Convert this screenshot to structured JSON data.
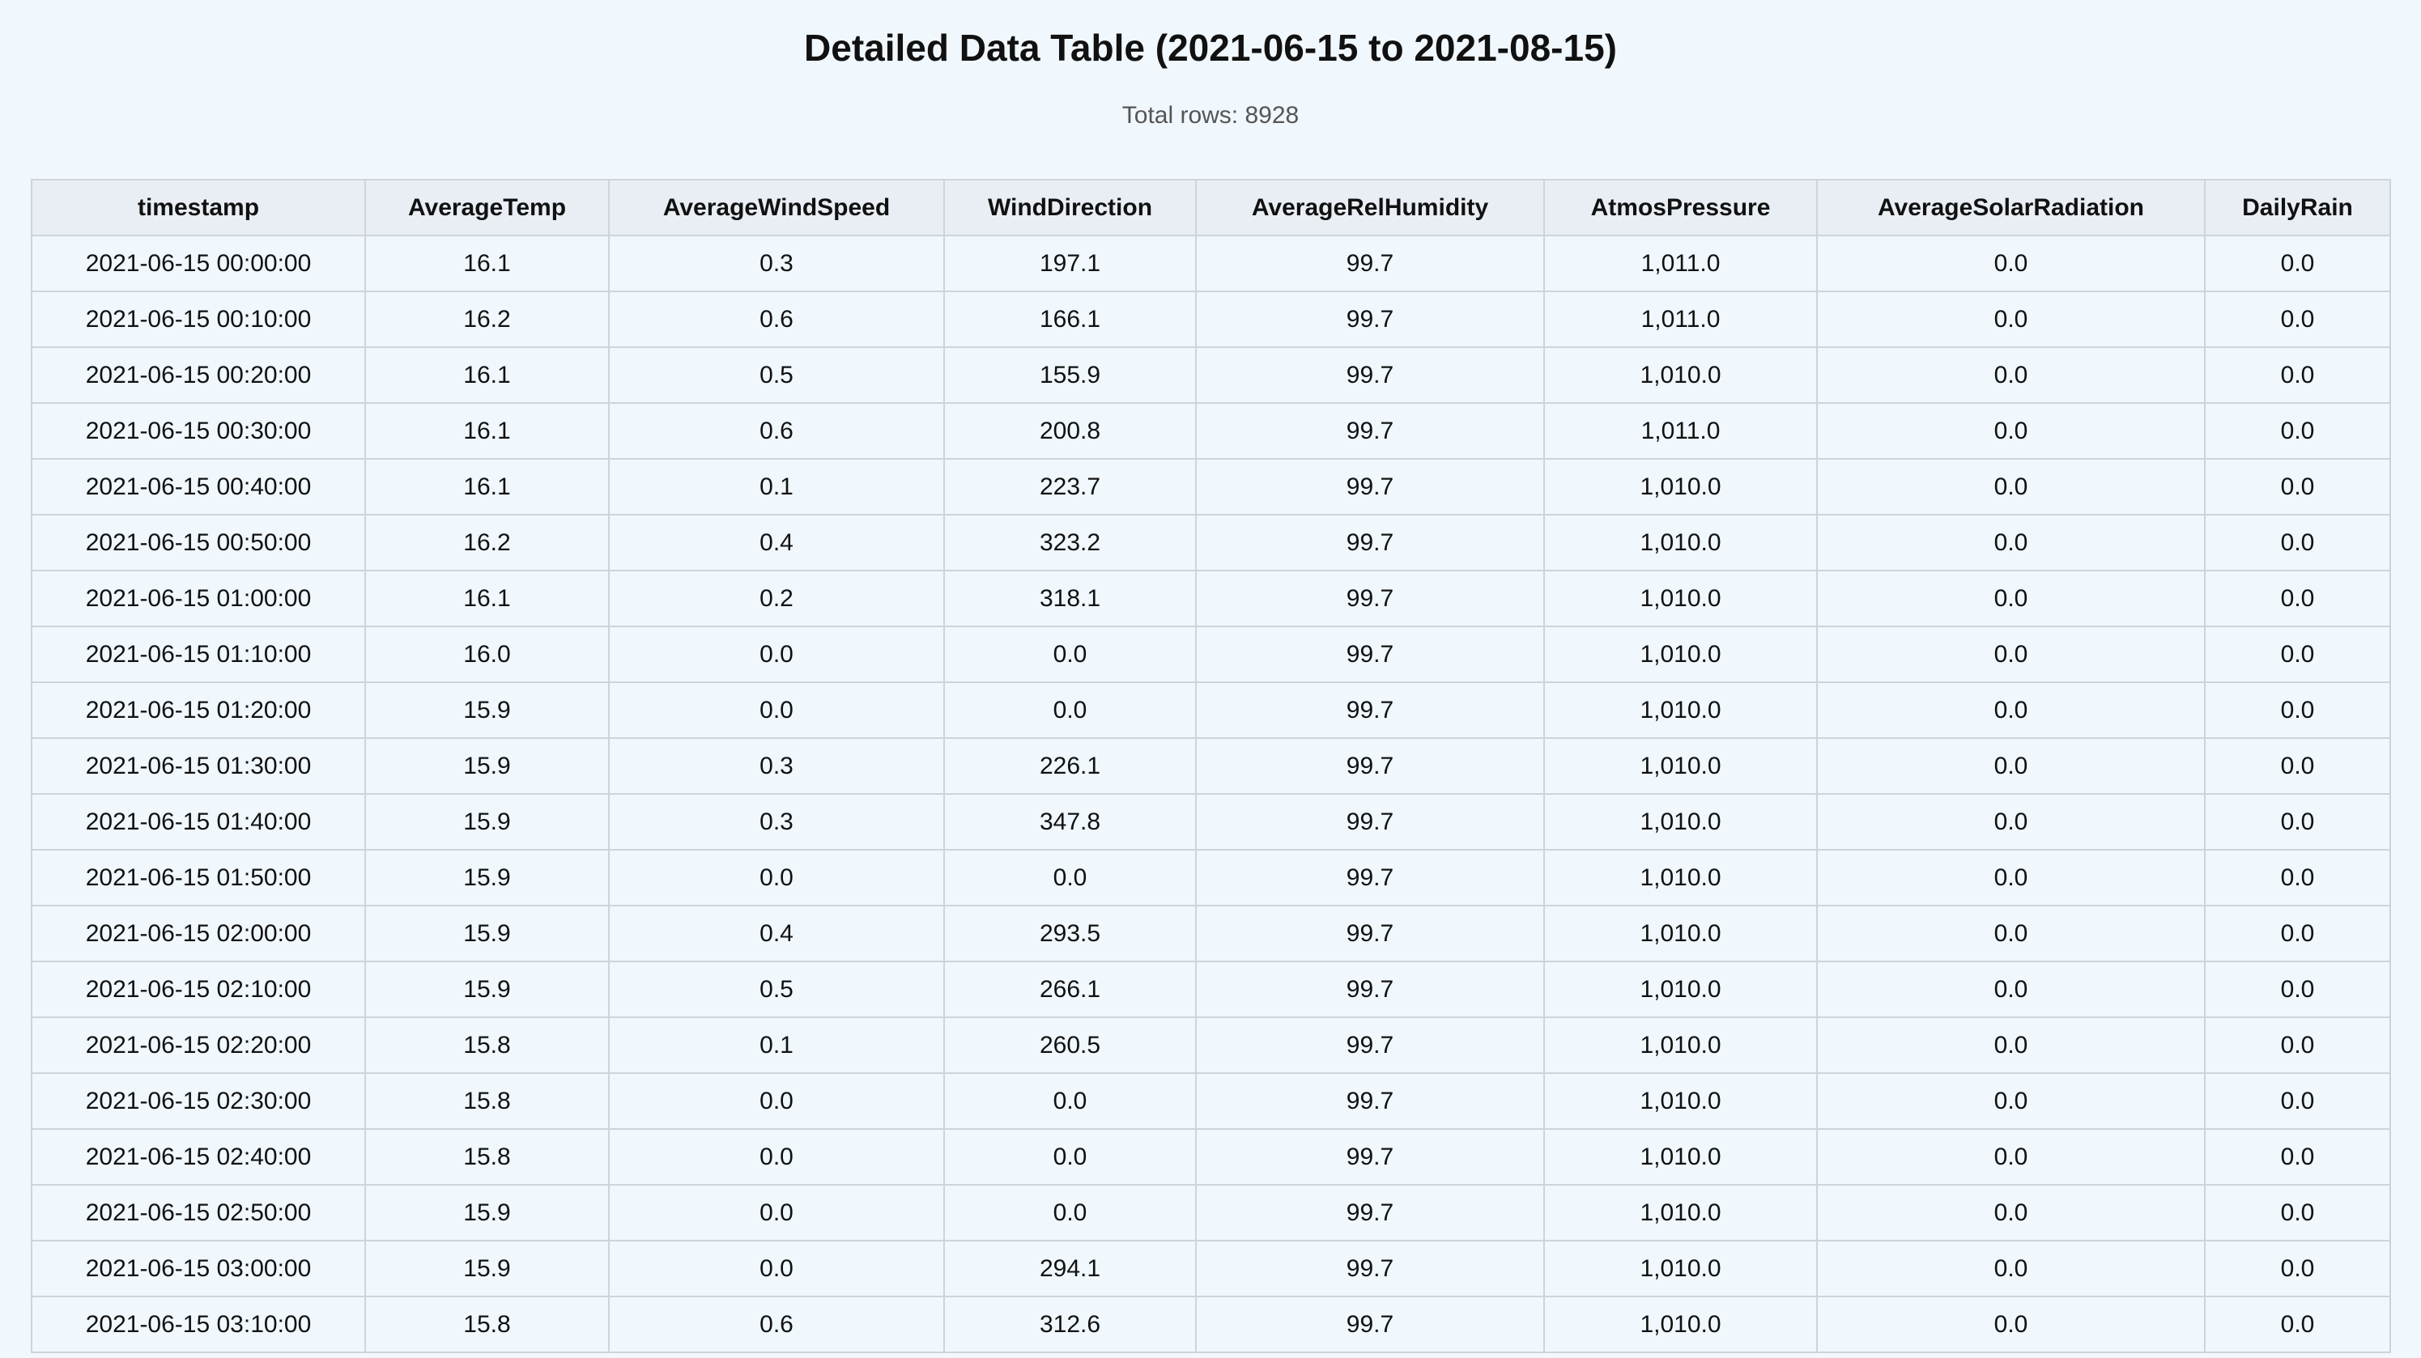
{
  "title": "Detailed Data Table (2021-06-15 to 2021-08-15)",
  "subtitle": "Total rows: 8928",
  "table": {
    "columns": [
      "timestamp",
      "AverageTemp",
      "AverageWindSpeed",
      "WindDirection",
      "AverageRelHumidity",
      "AtmosPressure",
      "AverageSolarRadiation",
      "DailyRain"
    ],
    "rows": [
      [
        "2021-06-15 00:00:00",
        "16.1",
        "0.3",
        "197.1",
        "99.7",
        "1,011.0",
        "0.0",
        "0.0"
      ],
      [
        "2021-06-15 00:10:00",
        "16.2",
        "0.6",
        "166.1",
        "99.7",
        "1,011.0",
        "0.0",
        "0.0"
      ],
      [
        "2021-06-15 00:20:00",
        "16.1",
        "0.5",
        "155.9",
        "99.7",
        "1,010.0",
        "0.0",
        "0.0"
      ],
      [
        "2021-06-15 00:30:00",
        "16.1",
        "0.6",
        "200.8",
        "99.7",
        "1,011.0",
        "0.0",
        "0.0"
      ],
      [
        "2021-06-15 00:40:00",
        "16.1",
        "0.1",
        "223.7",
        "99.7",
        "1,010.0",
        "0.0",
        "0.0"
      ],
      [
        "2021-06-15 00:50:00",
        "16.2",
        "0.4",
        "323.2",
        "99.7",
        "1,010.0",
        "0.0",
        "0.0"
      ],
      [
        "2021-06-15 01:00:00",
        "16.1",
        "0.2",
        "318.1",
        "99.7",
        "1,010.0",
        "0.0",
        "0.0"
      ],
      [
        "2021-06-15 01:10:00",
        "16.0",
        "0.0",
        "0.0",
        "99.7",
        "1,010.0",
        "0.0",
        "0.0"
      ],
      [
        "2021-06-15 01:20:00",
        "15.9",
        "0.0",
        "0.0",
        "99.7",
        "1,010.0",
        "0.0",
        "0.0"
      ],
      [
        "2021-06-15 01:30:00",
        "15.9",
        "0.3",
        "226.1",
        "99.7",
        "1,010.0",
        "0.0",
        "0.0"
      ],
      [
        "2021-06-15 01:40:00",
        "15.9",
        "0.3",
        "347.8",
        "99.7",
        "1,010.0",
        "0.0",
        "0.0"
      ],
      [
        "2021-06-15 01:50:00",
        "15.9",
        "0.0",
        "0.0",
        "99.7",
        "1,010.0",
        "0.0",
        "0.0"
      ],
      [
        "2021-06-15 02:00:00",
        "15.9",
        "0.4",
        "293.5",
        "99.7",
        "1,010.0",
        "0.0",
        "0.0"
      ],
      [
        "2021-06-15 02:10:00",
        "15.9",
        "0.5",
        "266.1",
        "99.7",
        "1,010.0",
        "0.0",
        "0.0"
      ],
      [
        "2021-06-15 02:20:00",
        "15.8",
        "0.1",
        "260.5",
        "99.7",
        "1,010.0",
        "0.0",
        "0.0"
      ],
      [
        "2021-06-15 02:30:00",
        "15.8",
        "0.0",
        "0.0",
        "99.7",
        "1,010.0",
        "0.0",
        "0.0"
      ],
      [
        "2021-06-15 02:40:00",
        "15.8",
        "0.0",
        "0.0",
        "99.7",
        "1,010.0",
        "0.0",
        "0.0"
      ],
      [
        "2021-06-15 02:50:00",
        "15.9",
        "0.0",
        "0.0",
        "99.7",
        "1,010.0",
        "0.0",
        "0.0"
      ],
      [
        "2021-06-15 03:00:00",
        "15.9",
        "0.0",
        "294.1",
        "99.7",
        "1,010.0",
        "0.0",
        "0.0"
      ],
      [
        "2021-06-15 03:10:00",
        "15.8",
        "0.6",
        "312.6",
        "99.7",
        "1,010.0",
        "0.0",
        "0.0"
      ]
    ]
  }
}
